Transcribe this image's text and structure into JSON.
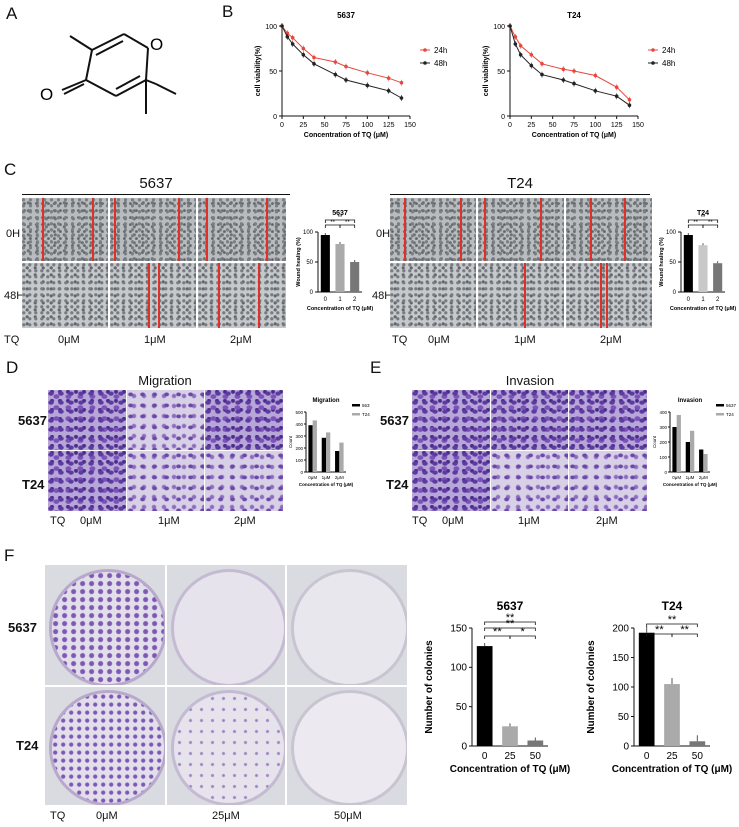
{
  "panels": {
    "A": "A",
    "B": "B",
    "C": "C",
    "D": "D",
    "E": "E",
    "F": "F"
  },
  "panelB": [
    {
      "title": "5637",
      "xlabel": "Concentration of TQ (μM)",
      "ylabel": "cell viability(%)",
      "xticks": [
        "0",
        "25",
        "50",
        "75",
        "100",
        "125",
        "150"
      ],
      "yticks": [
        "0",
        "50",
        "100"
      ],
      "legend": [
        "24h",
        "48h"
      ]
    },
    {
      "title": "T24",
      "xlabel": "Concentration of TQ (μM)",
      "ylabel": "cell viability(%)",
      "xticks": [
        "0",
        "25",
        "50",
        "75",
        "100",
        "125",
        "150"
      ],
      "yticks": [
        "0",
        "50",
        "100"
      ],
      "legend": [
        "24h",
        "48h"
      ]
    }
  ],
  "panelC": {
    "left_title": "5637",
    "right_title": "T24",
    "rows": [
      "0H",
      "48H"
    ],
    "tq": "TQ",
    "concs": [
      "0μM",
      "1μM",
      "2μM"
    ],
    "bar_left": {
      "title": "5637",
      "ylabel": "Wound healing (%)",
      "xlabel": "Concentration of TQ (μM)",
      "xticks": [
        "0",
        "1",
        "2"
      ],
      "yticks": [
        "0",
        "50",
        "100"
      ],
      "sig": [
        "**",
        "**",
        "**"
      ]
    },
    "bar_right": {
      "title": "T24",
      "ylabel": "Wound healing (%)",
      "xlabel": "Concentration of TQ (μM)",
      "xticks": [
        "0",
        "1",
        "2"
      ],
      "yticks": [
        "0",
        "50",
        "100"
      ],
      "sig": [
        "**",
        "**",
        "**"
      ]
    }
  },
  "panelD": {
    "title": "Migration",
    "rows": [
      "5637",
      "T24"
    ],
    "tq": "TQ",
    "concs": [
      "0μM",
      "1μM",
      "2μM"
    ],
    "bar": {
      "title": "Migration",
      "ylabel": "Count",
      "xlabel": "Concentration of TQ (μM)",
      "xticks": [
        "0μM",
        "1μM",
        "2μM"
      ],
      "yticks": [
        "0",
        "100",
        "200",
        "300",
        "400",
        "500"
      ],
      "legend": [
        "5637",
        "T24"
      ]
    }
  },
  "panelE": {
    "title": "Invasion",
    "rows": [
      "5637",
      "T24"
    ],
    "tq": "TQ",
    "concs": [
      "0μM",
      "1μM",
      "2μM"
    ],
    "bar": {
      "title": "Invasion",
      "ylabel": "Count",
      "xlabel": "Concentration of TQ (μM)",
      "xticks": [
        "0μM",
        "1μM",
        "2μM"
      ],
      "yticks": [
        "0",
        "100",
        "200",
        "300",
        "400"
      ],
      "legend": [
        "5637",
        "T24"
      ]
    }
  },
  "panelF": {
    "rows": [
      "5637",
      "T24"
    ],
    "tq": "TQ",
    "concs": [
      "0μM",
      "25μM",
      "50μM"
    ],
    "bar_left": {
      "title": "5637",
      "ylabel": "Number of colonies",
      "xlabel": "Concentration of TQ (μM)",
      "xticks": [
        "0",
        "25",
        "50"
      ],
      "yticks": [
        "0",
        "50",
        "100",
        "150"
      ],
      "sig": [
        "**",
        "**",
        "**",
        "*"
      ]
    },
    "bar_right": {
      "title": "T24",
      "ylabel": "Number of colonies",
      "xlabel": "Concentration of TQ (μM)",
      "xticks": [
        "0",
        "25",
        "50"
      ],
      "yticks": [
        "0",
        "50",
        "100",
        "150",
        "200"
      ],
      "sig": [
        "**",
        "**",
        "**"
      ]
    }
  },
  "chart_data": [
    {
      "type": "line",
      "title": "5637",
      "xlabel": "Concentration of TQ (μM)",
      "ylabel": "cell viability(%)",
      "xlim": [
        0,
        150
      ],
      "ylim": [
        0,
        100
      ],
      "x": [
        0,
        6.25,
        12.5,
        25,
        37.5,
        62.5,
        75,
        100,
        125,
        140
      ],
      "series": [
        {
          "name": "24h",
          "color": "#e8473d",
          "values": [
            100,
            92,
            87,
            75,
            65,
            60,
            55,
            48,
            42,
            37
          ]
        },
        {
          "name": "48h",
          "color": "#222222",
          "values": [
            100,
            88,
            80,
            68,
            58,
            46,
            40,
            34,
            28,
            20
          ]
        }
      ]
    },
    {
      "type": "line",
      "title": "T24",
      "xlabel": "Concentration of TQ (μM)",
      "ylabel": "cell viability(%)",
      "xlim": [
        0,
        150
      ],
      "ylim": [
        0,
        100
      ],
      "x": [
        0,
        6.25,
        12.5,
        25,
        37.5,
        62.5,
        75,
        100,
        125,
        140
      ],
      "series": [
        {
          "name": "24h",
          "color": "#e8473d",
          "values": [
            100,
            88,
            78,
            68,
            58,
            52,
            50,
            45,
            32,
            18
          ]
        },
        {
          "name": "48h",
          "color": "#222222",
          "values": [
            100,
            80,
            68,
            56,
            46,
            40,
            36,
            28,
            22,
            12
          ]
        }
      ]
    },
    {
      "type": "bar",
      "title": "5637",
      "ylabel": "Wound healing (%)",
      "xlabel": "Concentration of TQ (μM)",
      "categories": [
        "0",
        "1",
        "2"
      ],
      "values": [
        95,
        80,
        50
      ],
      "ylim": [
        0,
        100
      ],
      "colors": [
        "#000000",
        "#aaaaaa",
        "#777777"
      ]
    },
    {
      "type": "bar",
      "title": "T24",
      "ylabel": "Wound healing (%)",
      "xlabel": "Concentration of TQ (μM)",
      "categories": [
        "0",
        "1",
        "2"
      ],
      "values": [
        95,
        78,
        48
      ],
      "ylim": [
        0,
        100
      ],
      "colors": [
        "#000000",
        "#c8c8c8",
        "#777777"
      ]
    },
    {
      "type": "bar",
      "title": "Migration",
      "ylabel": "Count",
      "xlabel": "Concentration of TQ (μM)",
      "categories": [
        "0μM",
        "1μM",
        "2μM"
      ],
      "ylim": [
        0,
        500
      ],
      "series": [
        {
          "name": "5637",
          "color": "#000000",
          "values": [
            390,
            285,
            175
          ]
        },
        {
          "name": "T24",
          "color": "#aaaaaa",
          "values": [
            430,
            330,
            245
          ]
        }
      ]
    },
    {
      "type": "bar",
      "title": "Invasion",
      "ylabel": "Count",
      "xlabel": "Concentration of TQ (μM)",
      "categories": [
        "0μM",
        "1μM",
        "2μM"
      ],
      "ylim": [
        0,
        400
      ],
      "series": [
        {
          "name": "5637",
          "color": "#000000",
          "values": [
            300,
            200,
            150
          ]
        },
        {
          "name": "T24",
          "color": "#aaaaaa",
          "values": [
            380,
            275,
            120
          ]
        }
      ]
    },
    {
      "type": "bar",
      "title": "5637",
      "ylabel": "Number of colonies",
      "xlabel": "Concentration of TQ (μM)",
      "categories": [
        "0",
        "25",
        "50"
      ],
      "values": [
        127,
        25,
        7
      ],
      "ylim": [
        0,
        150
      ],
      "colors": [
        "#000000",
        "#aaaaaa",
        "#777777"
      ]
    },
    {
      "type": "bar",
      "title": "T24",
      "ylabel": "Number of colonies",
      "xlabel": "Concentration of TQ (μM)",
      "categories": [
        "0",
        "25",
        "50"
      ],
      "values": [
        192,
        105,
        8
      ],
      "ylim": [
        0,
        200
      ],
      "colors": [
        "#000000",
        "#aaaaaa",
        "#777777"
      ]
    }
  ]
}
